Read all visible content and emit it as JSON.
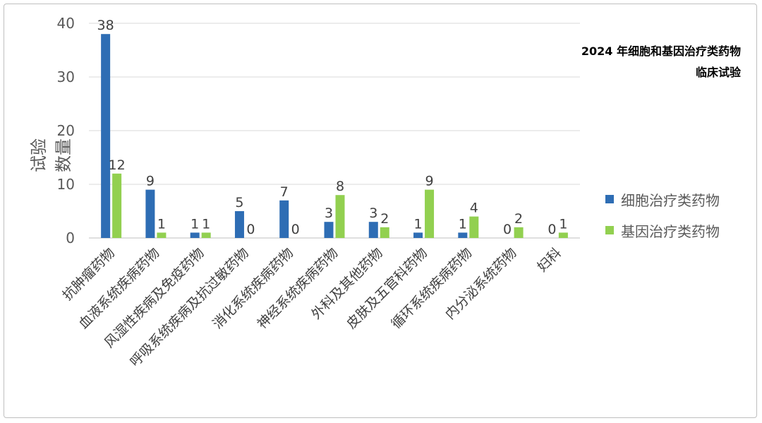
{
  "chart_data": {
    "type": "bar",
    "title_lines": [
      "2024 年细胞和基因治疗类药物",
      "临床试验"
    ],
    "ylabel": "试验数量",
    "ylim": [
      0,
      40
    ],
    "yticks": [
      0,
      10,
      20,
      30,
      40
    ],
    "grid": true,
    "legend_position": "right",
    "categories": [
      "抗肿瘤药物",
      "血液系统疾病药物",
      "风湿性疾病及免疫药物",
      "呼吸系统疾病及抗过敏药物",
      "消化系统疾病药物",
      "神经系统疾病药物",
      "外科及其他药物",
      "皮肤及五官科药物",
      "循环系统疾病药物",
      "内分泌系统药物",
      "妇科"
    ],
    "series": [
      {
        "name": "细胞治疗类药物",
        "color": "#2e6db4",
        "values": [
          38,
          9,
          1,
          5,
          7,
          3,
          3,
          1,
          1,
          0,
          0
        ]
      },
      {
        "name": "基因治疗类药物",
        "color": "#92d050",
        "values": [
          12,
          1,
          1,
          0,
          0,
          8,
          2,
          9,
          4,
          2,
          1
        ]
      }
    ]
  }
}
